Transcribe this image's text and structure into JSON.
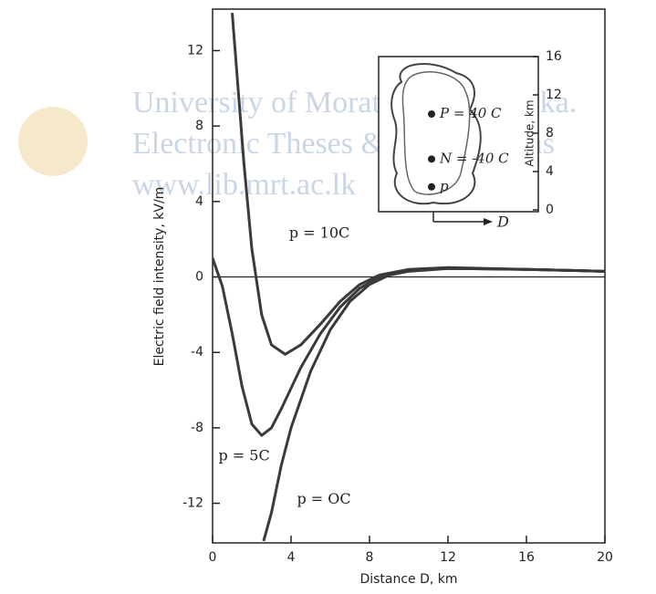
{
  "chart_data": {
    "type": "line",
    "xlabel": "Distance D, km",
    "ylabel": "Electric field intensity, kV/m",
    "xlim": [
      0,
      20
    ],
    "ylim": [
      -14.1,
      14.2
    ],
    "xticks": [
      0,
      4,
      8,
      12,
      16,
      20
    ],
    "yticks": [
      -12,
      -8,
      -4,
      0,
      4,
      8,
      12
    ],
    "zero_line": true,
    "series": [
      {
        "name": "p = 10C",
        "color": "#3a3a3a",
        "x": [
          1.0,
          1.3,
          1.6,
          2.0,
          2.5,
          3.0,
          3.7,
          4.5,
          5.5,
          6.5,
          7.5,
          8.5,
          10,
          12,
          16,
          20
        ],
        "values": [
          14,
          10,
          6,
          1.5,
          -2,
          -3.6,
          -4.1,
          -3.6,
          -2.5,
          -1.3,
          -0.4,
          0.1,
          0.4,
          0.5,
          0.4,
          0.3
        ]
      },
      {
        "name": "p = 5C",
        "color": "#3a3a3a",
        "x": [
          0,
          0.5,
          1.0,
          1.5,
          2.0,
          2.5,
          3.0,
          3.5,
          4.5,
          5.5,
          6.5,
          7.5,
          8.5,
          10,
          12,
          16,
          20
        ],
        "values": [
          1,
          -0.5,
          -3,
          -5.8,
          -7.8,
          -8.4,
          -8.0,
          -7.0,
          -4.8,
          -3.0,
          -1.6,
          -0.6,
          0,
          0.35,
          0.45,
          0.4,
          0.3
        ]
      },
      {
        "name": "p = OC",
        "color": "#3a3a3a",
        "x": [
          2.6,
          3.0,
          3.5,
          4.0,
          5.0,
          6.0,
          7.0,
          8.0,
          9.0,
          10,
          12,
          16,
          20
        ],
        "values": [
          -14,
          -12.5,
          -10,
          -8,
          -5,
          -2.8,
          -1.3,
          -0.4,
          0.1,
          0.3,
          0.45,
          0.4,
          0.3
        ]
      }
    ],
    "inset": {
      "ylabel": "Altitude, km",
      "xlabel": "D",
      "ylim": [
        0,
        16
      ],
      "yticks": [
        0,
        4,
        8,
        12,
        16
      ],
      "charges": [
        {
          "label": "P = 40 C",
          "altitude": 10
        },
        {
          "label": "N = -40 C",
          "altitude": 5.3
        },
        {
          "label": "p",
          "altitude": 2.4
        }
      ]
    },
    "watermark": [
      "University of Moratuwa, Sri Lanka.",
      "Electronic Theses & Dissertations",
      "www.lib.mrt.ac.lk"
    ]
  }
}
